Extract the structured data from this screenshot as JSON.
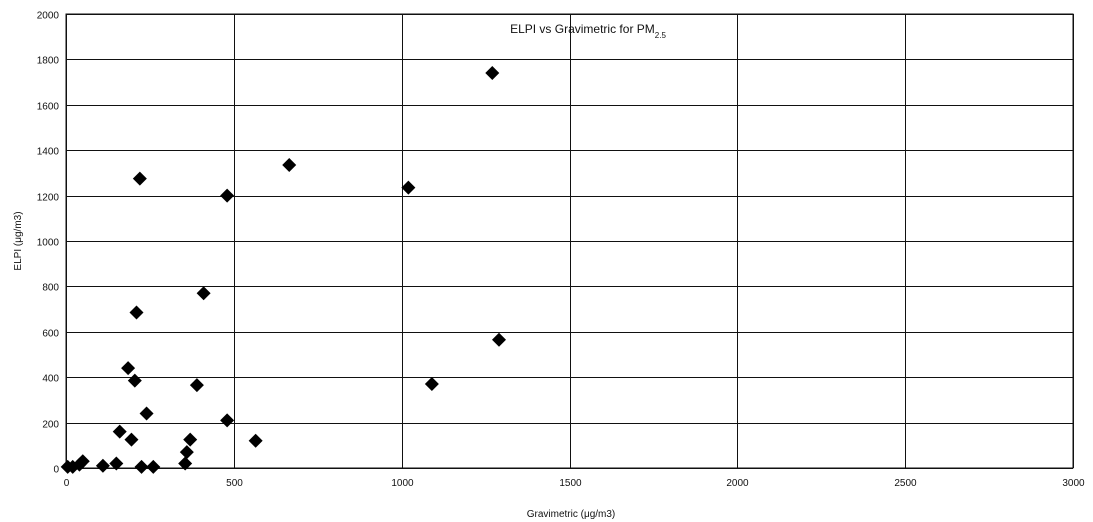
{
  "chart_data": {
    "type": "scatter",
    "title": "ELPI vs Gravimetric for PM",
    "title_subscript": "2.5",
    "xlabel": "Gravimetric (μg/m3)",
    "ylabel": "ELPI (μg/m3)",
    "xlim": [
      0,
      3000
    ],
    "ylim": [
      0,
      2000
    ],
    "xticks": [
      0,
      500,
      1000,
      1500,
      2000,
      2500,
      3000
    ],
    "yticks": [
      0,
      200,
      400,
      600,
      800,
      1000,
      1200,
      1400,
      1600,
      1800,
      2000
    ],
    "xtick_labels": [
      "0",
      "500",
      "1000",
      "1500",
      "2000",
      "2500",
      "3000"
    ],
    "ytick_labels": [
      "0",
      "200",
      "400",
      "600",
      "800",
      "1000",
      "1200",
      "1400",
      "1600",
      "1800",
      "2000"
    ],
    "grid": true,
    "marker": "diamond",
    "marker_color": "#000000",
    "points": [
      {
        "x": 5,
        "y": 5
      },
      {
        "x": 20,
        "y": 5
      },
      {
        "x": 40,
        "y": 15
      },
      {
        "x": 50,
        "y": 30
      },
      {
        "x": 110,
        "y": 10
      },
      {
        "x": 150,
        "y": 20
      },
      {
        "x": 160,
        "y": 160
      },
      {
        "x": 185,
        "y": 440
      },
      {
        "x": 195,
        "y": 125
      },
      {
        "x": 205,
        "y": 385
      },
      {
        "x": 210,
        "y": 685
      },
      {
        "x": 220,
        "y": 1275
      },
      {
        "x": 225,
        "y": 5
      },
      {
        "x": 240,
        "y": 240
      },
      {
        "x": 260,
        "y": 5
      },
      {
        "x": 355,
        "y": 20
      },
      {
        "x": 360,
        "y": 70
      },
      {
        "x": 370,
        "y": 125
      },
      {
        "x": 390,
        "y": 365
      },
      {
        "x": 410,
        "y": 770
      },
      {
        "x": 480,
        "y": 1200
      },
      {
        "x": 480,
        "y": 210
      },
      {
        "x": 565,
        "y": 120
      },
      {
        "x": 665,
        "y": 1335
      },
      {
        "x": 1020,
        "y": 1235
      },
      {
        "x": 1090,
        "y": 370
      },
      {
        "x": 1270,
        "y": 1740
      },
      {
        "x": 1290,
        "y": 565
      }
    ]
  }
}
